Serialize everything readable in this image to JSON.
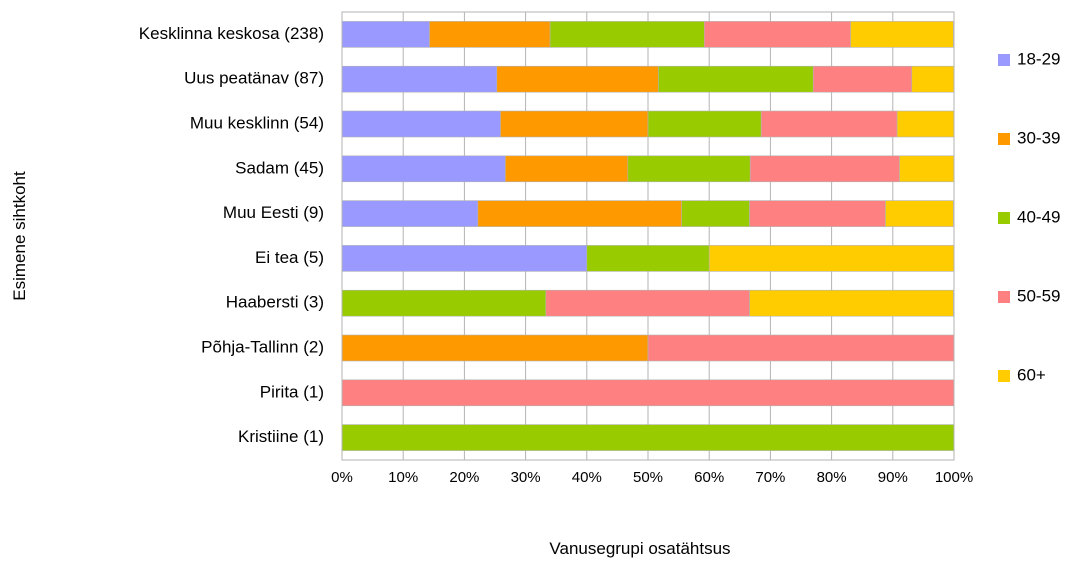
{
  "chart_data": {
    "type": "bar",
    "orientation": "horizontal",
    "stacked": "percent",
    "xlabel": "Vanusegrupi osatähtsus",
    "ylabel": "Esimene sihtkoht",
    "xlim": [
      0,
      100
    ],
    "x_ticks": [
      "0%",
      "10%",
      "20%",
      "30%",
      "40%",
      "50%",
      "60%",
      "70%",
      "80%",
      "90%",
      "100%"
    ],
    "grid": "vertical",
    "legend_position": "right",
    "categories": [
      "Kesklinna keskosa (238)",
      "Uus peatänav (87)",
      "Muu kesklinn (54)",
      "Sadam (45)",
      "Muu Eesti (9)",
      "Ei tea (5)",
      "Haabersti (3)",
      "Põhja-Tallinn (2)",
      "Pirita (1)",
      "Kristiine (1)"
    ],
    "series": [
      {
        "name": "18-29",
        "color": "#9999ff",
        "values": [
          14.3,
          25.3,
          25.9,
          26.7,
          22.2,
          40,
          0,
          0,
          0,
          0
        ]
      },
      {
        "name": "30-39",
        "color": "#ff9900",
        "values": [
          19.7,
          26.4,
          24.1,
          20.0,
          33.3,
          0,
          0,
          50,
          0,
          0
        ]
      },
      {
        "name": "40-49",
        "color": "#99cc00",
        "values": [
          25.2,
          25.3,
          18.5,
          20.0,
          11.1,
          20,
          33.3,
          0,
          0,
          100
        ]
      },
      {
        "name": "50-59",
        "color": "#ff8080",
        "values": [
          23.9,
          16.1,
          22.2,
          24.4,
          22.2,
          0,
          33.3,
          50,
          100,
          0
        ]
      },
      {
        "name": "60+",
        "color": "#ffcc00",
        "values": [
          16.8,
          6.9,
          9.3,
          8.9,
          11.1,
          40,
          33.3,
          0,
          0,
          0
        ]
      }
    ]
  }
}
